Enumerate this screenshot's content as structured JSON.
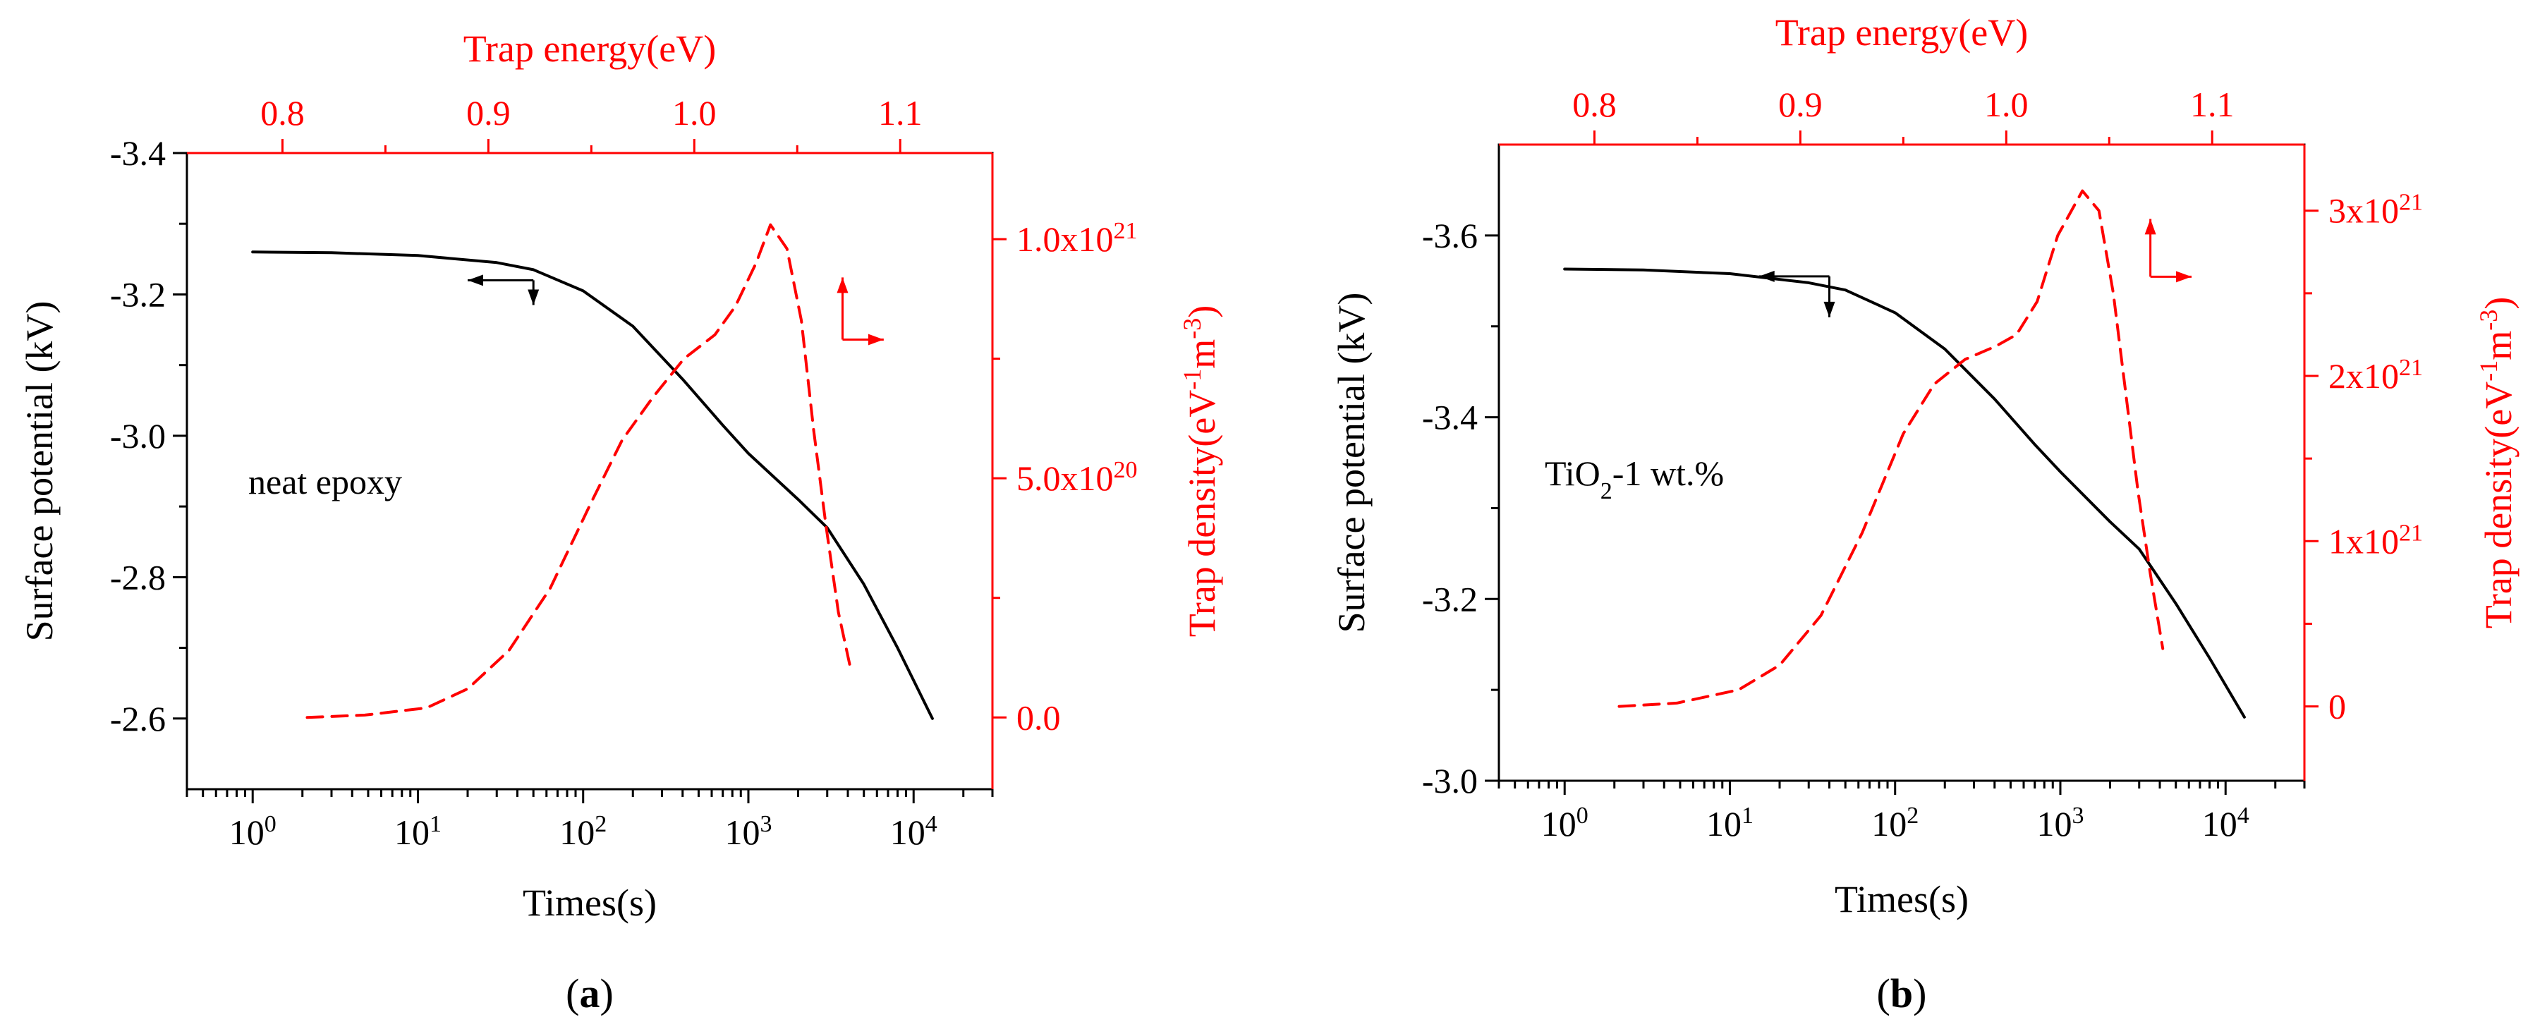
{
  "colors": {
    "primary": "#000000",
    "secondary": "#ff0000"
  },
  "chart_data": [
    {
      "type": "line",
      "panel_label": "a",
      "annotation": "neat epoxy",
      "xlabel": "Times(s)",
      "ylabel": "Surface potential (kV)",
      "x2label": "Trap energy(eV)",
      "y2label_main": "Trap density(eV",
      "y2label_exp1": "-1",
      "y2label_mid": "m",
      "y2label_exp2": "-3",
      "y2label_end": ")",
      "xscale": "log",
      "xlim": [
        0.4,
        30000
      ],
      "ylim": [
        -3.4,
        -2.5
      ],
      "yinverted": true,
      "x2lim": [
        0.7536,
        1.1448
      ],
      "y2lim": [
        -0.15,
        1.18
      ],
      "xticks": [
        {
          "v": 1,
          "base": "10",
          "exp": "0"
        },
        {
          "v": 10,
          "base": "10",
          "exp": "1"
        },
        {
          "v": 100,
          "base": "10",
          "exp": "2"
        },
        {
          "v": 1000,
          "base": "10",
          "exp": "3"
        },
        {
          "v": 10000,
          "base": "10",
          "exp": "4"
        }
      ],
      "yticks": [
        {
          "v": -3.4,
          "label": "-3.4"
        },
        {
          "v": -3.2,
          "label": "-3.2"
        },
        {
          "v": -3.0,
          "label": "-3.0"
        },
        {
          "v": -2.8,
          "label": "-2.8"
        },
        {
          "v": -2.6,
          "label": "-2.6"
        }
      ],
      "yminor": [
        -3.3,
        -3.1,
        -2.9,
        -2.7
      ],
      "x2ticks": [
        {
          "v": 0.8,
          "label": "0.8"
        },
        {
          "v": 0.9,
          "label": "0.9"
        },
        {
          "v": 1.0,
          "label": "1.0"
        },
        {
          "v": 1.1,
          "label": "1.1"
        }
      ],
      "x2minor": [
        0.85,
        0.95,
        1.05
      ],
      "y2ticks": [
        {
          "v": 0.0,
          "label": "0.0"
        },
        {
          "v": 0.5,
          "base": "5.0x10",
          "exp": "20"
        },
        {
          "v": 1.0,
          "base": "1.0x10",
          "exp": "21"
        }
      ],
      "y2minor": [
        0.25,
        0.75
      ],
      "series": [
        {
          "name": "Surface potential",
          "axis": "primary",
          "color": "#000000",
          "style": "solid",
          "x": [
            1,
            3,
            10,
            30,
            50,
            100,
            200,
            400,
            700,
            1000,
            2000,
            3000,
            5000,
            8000,
            13000
          ],
          "y": [
            -3.26,
            -3.259,
            -3.255,
            -3.245,
            -3.235,
            -3.205,
            -3.155,
            -3.08,
            -3.015,
            -2.975,
            -2.91,
            -2.87,
            -2.79,
            -2.7,
            -2.6
          ]
        },
        {
          "name": "Trap density",
          "axis": "secondary",
          "color": "#ff0000",
          "style": "dashed",
          "x": [
            0.812,
            0.84,
            0.87,
            0.89,
            0.91,
            0.93,
            0.95,
            0.965,
            0.98,
            0.995,
            1.01,
            1.02,
            1.03,
            1.037,
            1.045,
            1.052,
            1.058,
            1.064,
            1.07,
            1.076
          ],
          "y": [
            0.0,
            0.005,
            0.02,
            0.06,
            0.14,
            0.27,
            0.45,
            0.58,
            0.67,
            0.75,
            0.8,
            0.86,
            0.95,
            1.03,
            0.98,
            0.83,
            0.6,
            0.4,
            0.22,
            0.1
          ]
        }
      ],
      "arrows": [
        {
          "axis": "primary",
          "corner": [
            50,
            -3.22
          ],
          "h_end": [
            20,
            -3.22
          ],
          "v_end": [
            50,
            -3.185
          ]
        },
        {
          "axis": "secondary",
          "corner": [
            1.072,
            0.79
          ],
          "h_end": [
            1.092,
            0.79
          ],
          "v_end": [
            1.072,
            0.92
          ]
        }
      ]
    },
    {
      "type": "line",
      "panel_label": "b",
      "annotation_main": "TiO",
      "annotation_sub": "2",
      "annotation_end": "-1 wt.%",
      "xlabel": "Times(s)",
      "ylabel": "Surface potential (kV)",
      "x2label": "Trap energy(eV)",
      "y2label_main": "Trap density(eV",
      "y2label_exp1": "-1",
      "y2label_mid": "m",
      "y2label_exp2": "-3",
      "y2label_end": ")",
      "xscale": "log",
      "xlim": [
        0.4,
        30000
      ],
      "ylim": [
        -3.7,
        -3.0
      ],
      "yinverted": true,
      "x2lim": [
        0.7536,
        1.1448
      ],
      "y2lim": [
        -0.45,
        3.4
      ],
      "xticks": [
        {
          "v": 1,
          "base": "10",
          "exp": "0"
        },
        {
          "v": 10,
          "base": "10",
          "exp": "1"
        },
        {
          "v": 100,
          "base": "10",
          "exp": "2"
        },
        {
          "v": 1000,
          "base": "10",
          "exp": "3"
        },
        {
          "v": 10000,
          "base": "10",
          "exp": "4"
        }
      ],
      "yticks": [
        {
          "v": -3.6,
          "label": "-3.6"
        },
        {
          "v": -3.4,
          "label": "-3.4"
        },
        {
          "v": -3.2,
          "label": "-3.2"
        },
        {
          "v": -3.0,
          "label": "-3.0"
        }
      ],
      "yminor": [
        -3.5,
        -3.3,
        -3.1
      ],
      "x2ticks": [
        {
          "v": 0.8,
          "label": "0.8"
        },
        {
          "v": 0.9,
          "label": "0.9"
        },
        {
          "v": 1.0,
          "label": "1.0"
        },
        {
          "v": 1.1,
          "label": "1.1"
        }
      ],
      "x2minor": [
        0.85,
        0.95,
        1.05
      ],
      "y2ticks": [
        {
          "v": 0,
          "label": "0"
        },
        {
          "v": 1,
          "base": "1x10",
          "exp": "21"
        },
        {
          "v": 2,
          "base": "2x10",
          "exp": "21"
        },
        {
          "v": 3,
          "base": "3x10",
          "exp": "21"
        }
      ],
      "y2minor": [
        0.5,
        1.5,
        2.5
      ],
      "series": [
        {
          "name": "Surface potential",
          "axis": "primary",
          "color": "#000000",
          "style": "solid",
          "x": [
            1,
            3,
            10,
            30,
            50,
            100,
            200,
            400,
            700,
            1000,
            2000,
            3000,
            5000,
            8000,
            13000
          ],
          "y": [
            -3.563,
            -3.562,
            -3.558,
            -3.548,
            -3.54,
            -3.515,
            -3.475,
            -3.42,
            -3.37,
            -3.34,
            -3.285,
            -3.255,
            -3.195,
            -3.135,
            -3.07
          ]
        },
        {
          "name": "Trap density",
          "axis": "secondary",
          "color": "#ff0000",
          "style": "dashed",
          "x": [
            0.812,
            0.84,
            0.87,
            0.89,
            0.91,
            0.93,
            0.95,
            0.965,
            0.98,
            0.995,
            1.005,
            1.015,
            1.025,
            1.037,
            1.045,
            1.052,
            1.058,
            1.064,
            1.07,
            1.076
          ],
          "y": [
            0.0,
            0.02,
            0.1,
            0.25,
            0.55,
            1.05,
            1.65,
            1.95,
            2.1,
            2.18,
            2.25,
            2.45,
            2.85,
            3.12,
            3.0,
            2.5,
            1.9,
            1.3,
            0.8,
            0.35
          ]
        }
      ],
      "arrows": [
        {
          "axis": "primary",
          "corner": [
            40,
            -3.555
          ],
          "h_end": [
            15,
            -3.555
          ],
          "v_end": [
            40,
            -3.51
          ]
        },
        {
          "axis": "secondary",
          "corner": [
            1.07,
            2.6
          ],
          "h_end": [
            1.09,
            2.6
          ],
          "v_end": [
            1.07,
            2.95
          ]
        }
      ]
    }
  ]
}
